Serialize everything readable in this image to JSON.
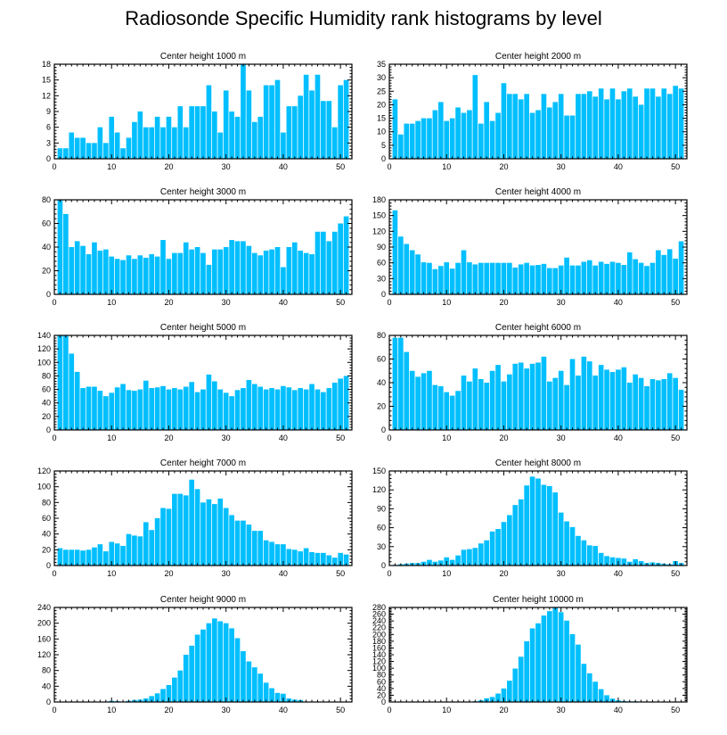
{
  "title": "Radiosonde Specific Humidity rank histograms by level",
  "bar_color": "#00BFFF",
  "chart_data": [
    {
      "type": "bar",
      "title": "Center height 1000 m",
      "xlabel": "",
      "ylabel": "",
      "xlim": [
        0,
        52
      ],
      "ylim": [
        0,
        18
      ],
      "xticks": [
        0,
        10,
        20,
        30,
        40,
        50
      ],
      "yticks": [
        0,
        3,
        6,
        9,
        12,
        15,
        18
      ],
      "values": [
        2,
        2,
        5,
        4,
        4,
        3,
        3,
        6,
        3,
        8,
        5,
        2,
        4,
        7,
        9,
        6,
        6,
        8,
        6,
        8,
        6,
        10,
        6,
        10,
        10,
        10,
        14,
        9,
        5,
        13,
        9,
        8,
        18,
        13,
        7,
        8,
        14,
        14,
        15,
        5,
        10,
        10,
        12,
        16,
        13,
        16,
        11,
        11,
        6,
        14,
        15
      ]
    },
    {
      "type": "bar",
      "title": "Center height 2000 m",
      "xlabel": "",
      "ylabel": "",
      "xlim": [
        0,
        52
      ],
      "ylim": [
        0,
        35
      ],
      "xticks": [
        0,
        10,
        20,
        30,
        40,
        50
      ],
      "yticks": [
        0,
        5,
        10,
        15,
        20,
        25,
        30,
        35
      ],
      "values": [
        22,
        9,
        13,
        13,
        14,
        15,
        15,
        18,
        21,
        14,
        15,
        19,
        17,
        18,
        31,
        13,
        21,
        14,
        17,
        28,
        24,
        24,
        22,
        24,
        17,
        18,
        24,
        19,
        21,
        24,
        16,
        16,
        24,
        24,
        25,
        23,
        26,
        22,
        26,
        22,
        25,
        26,
        23,
        20,
        26,
        26,
        23,
        26,
        24,
        27,
        26
      ]
    },
    {
      "type": "bar",
      "title": "Center height 3000 m",
      "xlabel": "",
      "ylabel": "",
      "xlim": [
        0,
        52
      ],
      "ylim": [
        0,
        80
      ],
      "xticks": [
        0,
        10,
        20,
        30,
        40,
        50
      ],
      "yticks": [
        0,
        20,
        40,
        60,
        80
      ],
      "values": [
        80,
        68,
        40,
        45,
        41,
        34,
        44,
        37,
        38,
        32,
        30,
        29,
        33,
        30,
        33,
        31,
        34,
        32,
        46,
        30,
        35,
        35,
        44,
        38,
        40,
        35,
        25,
        38,
        38,
        40,
        46,
        45,
        45,
        41,
        35,
        33,
        37,
        38,
        40,
        23,
        40,
        44,
        37,
        35,
        34,
        53,
        53,
        45,
        53,
        60,
        66
      ]
    },
    {
      "type": "bar",
      "title": "Center height 4000 m",
      "xlabel": "",
      "ylabel": "",
      "xlim": [
        0,
        52
      ],
      "ylim": [
        0,
        180
      ],
      "xticks": [
        0,
        10,
        20,
        30,
        40,
        50
      ],
      "yticks": [
        0,
        30,
        60,
        90,
        120,
        150,
        180
      ],
      "values": [
        160,
        110,
        96,
        84,
        76,
        61,
        60,
        48,
        54,
        61,
        49,
        60,
        84,
        61,
        57,
        60,
        60,
        60,
        60,
        60,
        60,
        51,
        57,
        60,
        55,
        56,
        58,
        50,
        50,
        55,
        70,
        55,
        55,
        62,
        65,
        55,
        62,
        58,
        62,
        60,
        56,
        80,
        67,
        60,
        54,
        60,
        84,
        75,
        86,
        68,
        101
      ]
    },
    {
      "type": "bar",
      "title": "Center height 5000 m",
      "xlabel": "",
      "ylabel": "",
      "xlim": [
        0,
        52
      ],
      "ylim": [
        0,
        140
      ],
      "xticks": [
        0,
        10,
        20,
        30,
        40,
        50
      ],
      "yticks": [
        0,
        20,
        40,
        60,
        80,
        100,
        120,
        140
      ],
      "values": [
        140,
        140,
        113,
        86,
        62,
        64,
        64,
        58,
        50,
        55,
        63,
        68,
        59,
        58,
        60,
        73,
        62,
        63,
        65,
        60,
        62,
        60,
        64,
        71,
        56,
        60,
        82,
        72,
        60,
        55,
        50,
        59,
        62,
        74,
        68,
        64,
        60,
        62,
        60,
        65,
        63,
        59,
        62,
        60,
        68,
        60,
        56,
        62,
        70,
        76,
        80
      ]
    },
    {
      "type": "bar",
      "title": "Center height 6000 m",
      "xlabel": "",
      "ylabel": "",
      "xlim": [
        0,
        52
      ],
      "ylim": [
        0,
        80
      ],
      "xticks": [
        0,
        10,
        20,
        30,
        40,
        50
      ],
      "yticks": [
        0,
        20,
        40,
        60,
        80
      ],
      "values": [
        78,
        78,
        66,
        50,
        45,
        48,
        50,
        38,
        37,
        32,
        29,
        33,
        46,
        41,
        52,
        43,
        40,
        50,
        55,
        41,
        47,
        56,
        57,
        52,
        56,
        57,
        62,
        41,
        44,
        50,
        38,
        60,
        46,
        62,
        58,
        46,
        55,
        51,
        49,
        51,
        53,
        40,
        47,
        44,
        37,
        43,
        42,
        43,
        48,
        44,
        34
      ]
    },
    {
      "type": "bar",
      "title": "Center height 7000 m",
      "xlabel": "",
      "ylabel": "",
      "xlim": [
        0,
        52
      ],
      "ylim": [
        0,
        120
      ],
      "xticks": [
        0,
        10,
        20,
        30,
        40,
        50
      ],
      "yticks": [
        0,
        20,
        40,
        60,
        80,
        100,
        120
      ],
      "values": [
        22,
        20,
        20,
        20,
        19,
        20,
        23,
        27,
        18,
        30,
        28,
        25,
        40,
        38,
        37,
        55,
        45,
        60,
        73,
        72,
        91,
        91,
        89,
        109,
        97,
        80,
        84,
        78,
        85,
        73,
        64,
        57,
        57,
        52,
        44,
        44,
        32,
        30,
        27,
        27,
        21,
        20,
        18,
        22,
        17,
        16,
        16,
        13,
        10,
        16,
        14
      ]
    },
    {
      "type": "bar",
      "title": "Center height 8000 m",
      "xlabel": "",
      "ylabel": "",
      "xlim": [
        0,
        52
      ],
      "ylim": [
        0,
        150
      ],
      "xticks": [
        0,
        10,
        20,
        30,
        40,
        50
      ],
      "yticks": [
        0,
        30,
        60,
        90,
        120,
        150
      ],
      "values": [
        1,
        2,
        3,
        4,
        4,
        6,
        9,
        6,
        8,
        13,
        9,
        16,
        25,
        26,
        28,
        35,
        40,
        54,
        58,
        69,
        80,
        96,
        105,
        127,
        141,
        138,
        128,
        126,
        116,
        84,
        70,
        61,
        47,
        40,
        32,
        31,
        20,
        15,
        13,
        12,
        11,
        6,
        10,
        7,
        4,
        5,
        4,
        3,
        2,
        7,
        4
      ]
    },
    {
      "type": "bar",
      "title": "Center height 9000 m",
      "xlabel": "",
      "ylabel": "",
      "xlim": [
        0,
        52
      ],
      "ylim": [
        0,
        240
      ],
      "xticks": [
        0,
        10,
        20,
        30,
        40,
        50
      ],
      "yticks": [
        0,
        40,
        80,
        120,
        160,
        200,
        240
      ],
      "values": [
        1,
        0,
        0,
        0,
        0,
        0,
        0,
        0,
        1,
        3,
        2,
        1,
        3,
        5,
        6,
        9,
        15,
        22,
        33,
        43,
        62,
        80,
        120,
        143,
        171,
        184,
        200,
        212,
        205,
        200,
        187,
        162,
        129,
        103,
        88,
        72,
        49,
        35,
        23,
        21,
        9,
        6,
        5,
        1,
        1,
        0,
        1,
        0,
        0,
        0,
        0
      ]
    },
    {
      "type": "bar",
      "title": "Center height 10000 m",
      "xlabel": "",
      "ylabel": "",
      "xlim": [
        0,
        52
      ],
      "ylim": [
        0,
        280
      ],
      "xticks": [
        0,
        10,
        20,
        30,
        40,
        50
      ],
      "yticks": [
        0,
        20,
        40,
        60,
        80,
        100,
        120,
        140,
        160,
        180,
        200,
        220,
        240,
        260,
        280
      ],
      "values": [
        0,
        0,
        0,
        0,
        0,
        0,
        0,
        0,
        0,
        0,
        0,
        1,
        1,
        1,
        2,
        5,
        11,
        15,
        25,
        40,
        63,
        99,
        134,
        180,
        218,
        233,
        256,
        269,
        282,
        266,
        241,
        201,
        170,
        113,
        85,
        60,
        38,
        20,
        10,
        5,
        3,
        2,
        2,
        1,
        1,
        0,
        0,
        0,
        0,
        0,
        0
      ]
    }
  ]
}
